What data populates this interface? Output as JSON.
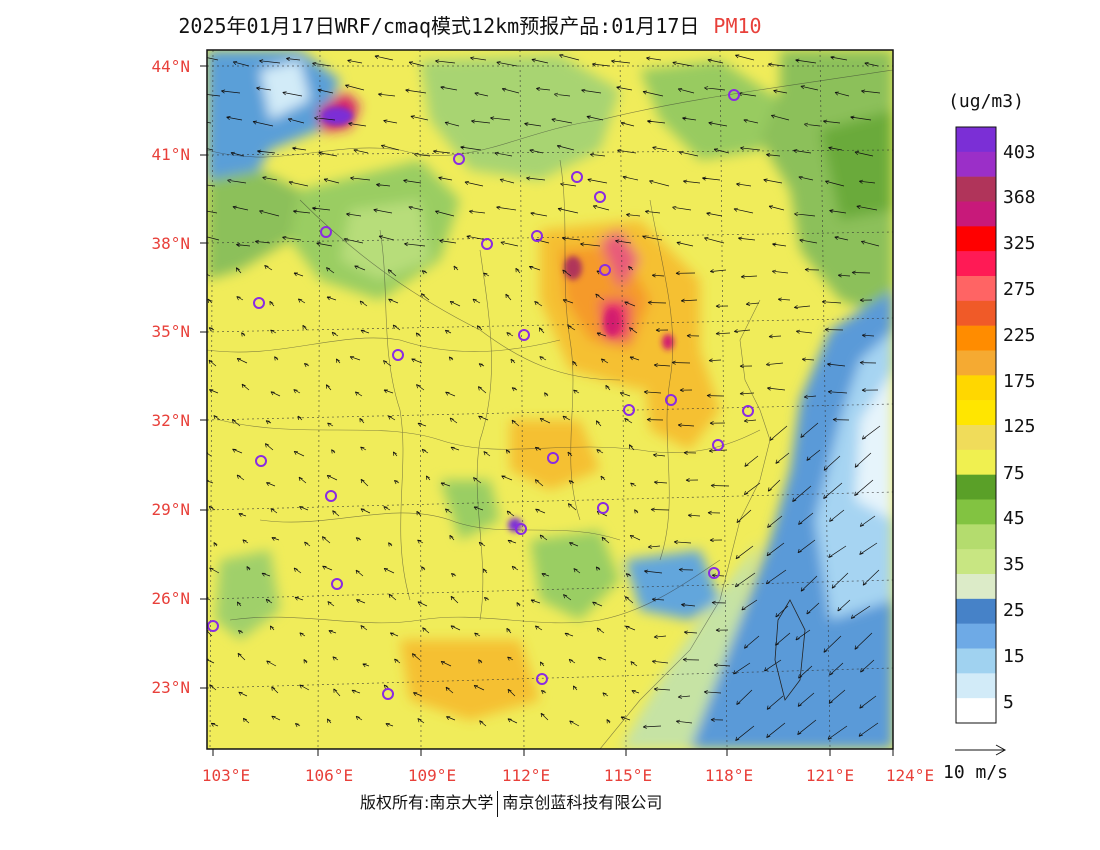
{
  "header": {
    "title": "2025年01月17日WRF/cmaq模式12km预报产品:01月17日",
    "variable": "PM10"
  },
  "map": {
    "lat_labels": [
      "44°N",
      "41°N",
      "38°N",
      "35°N",
      "32°N",
      "29°N",
      "26°N",
      "23°N"
    ],
    "lon_labels": [
      "103°E",
      "106°E",
      "109°E",
      "112°E",
      "115°E",
      "118°E",
      "121°E",
      "124°E"
    ],
    "label_color": "#e8403a"
  },
  "legend": {
    "unit": "(ug/m3)",
    "labels": [
      "403",
      "368",
      "325",
      "275",
      "225",
      "175",
      "125",
      "75",
      "45",
      "35",
      "25",
      "15",
      "5"
    ],
    "colors": [
      "#7b2fd6",
      "#9b2fc8",
      "#b0345a",
      "#c8197a",
      "#ff0000",
      "#ff1a55",
      "#ff6464",
      "#f05a28",
      "#ff8c00",
      "#f5aa32",
      "#ffd700",
      "#ffe600",
      "#f0dc5a",
      "#f0f050",
      "#5aa028",
      "#82c341",
      "#b4dc6e",
      "#c8e682",
      "#dcebc8",
      "#4682c8",
      "#6eaae6",
      "#a0d2f0",
      "#d2ebf8",
      "#ffffff"
    ],
    "wind_scale": "10 m/s"
  },
  "footer": {
    "left": "版权所有:南京大学",
    "right": "南京创蓝科技有限公司"
  }
}
